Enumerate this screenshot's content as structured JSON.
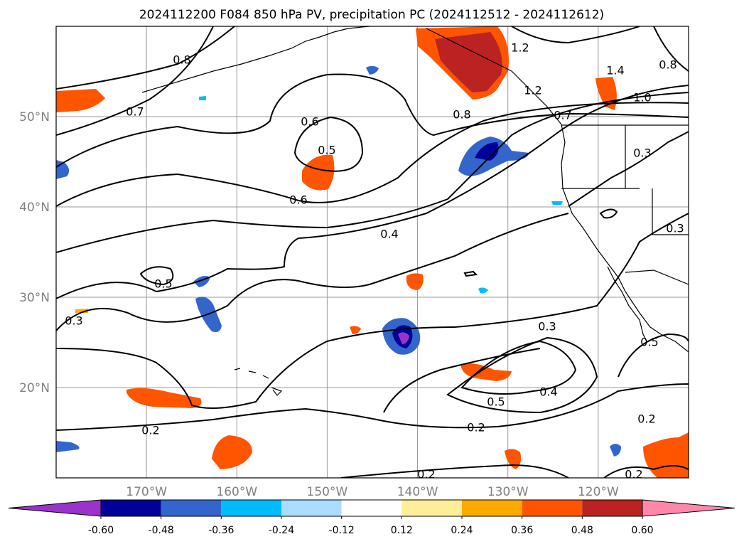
{
  "title": "2024112200 F084 850 hPa PV, precipitation PC (2024112512 - 2024112612)",
  "map": {
    "lat_labels": [
      "50°N",
      "40°N",
      "30°N",
      "20°N"
    ],
    "lon_labels": [
      "170°W",
      "160°W",
      "150°W",
      "140°W",
      "130°W",
      "120°W"
    ],
    "lat_values": [
      50,
      40,
      30,
      20
    ],
    "lon_values": [
      -170,
      -160,
      -150,
      -140,
      -130,
      -120
    ],
    "extent": {
      "lon_min": -180,
      "lon_max": -110,
      "lat_min": 10,
      "lat_max": 60
    },
    "gridlines": true
  },
  "colorbar": {
    "tick_labels": [
      "-0.60",
      "-0.48",
      "-0.36",
      "-0.24",
      "-0.12",
      "0.12",
      "0.24",
      "0.36",
      "0.48",
      "0.60"
    ],
    "colors": [
      "#9933cc",
      "#000099",
      "#3366cc",
      "#00bbff",
      "#aaddff",
      "#ffffff",
      "#ffee99",
      "#ffaa00",
      "#ff5500",
      "#bb2222",
      "#ff88aa"
    ],
    "extend": "both"
  },
  "contour_labels": [
    "0.8",
    "0.7",
    "0.6",
    "0.5",
    "0.6",
    "0.4",
    "0.5",
    "0.3",
    "0.8",
    "1.2",
    "1.4",
    "1.0",
    "1.2",
    "0.7",
    "0.3",
    "0.3",
    "0.3",
    "0.5",
    "0.4",
    "0.5",
    "0.2",
    "0.2",
    "0.2",
    "0.2",
    "0.2",
    "0.8"
  ]
}
